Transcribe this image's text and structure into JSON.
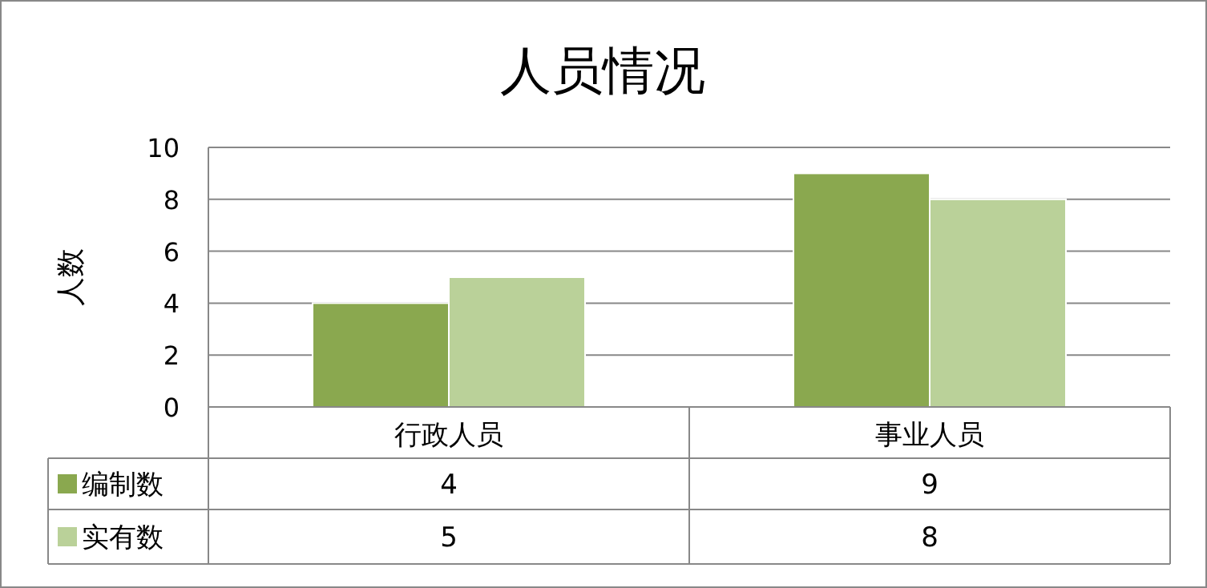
{
  "chart_data": {
    "type": "bar",
    "title": "人员情况",
    "ylabel": "人数",
    "categories": [
      "行政人员",
      "事业人员"
    ],
    "series": [
      {
        "name": "编制数",
        "color": "#8aa84f",
        "values": [
          4,
          9
        ]
      },
      {
        "name": "实有数",
        "color": "#bad199",
        "values": [
          5,
          8
        ]
      }
    ],
    "ylim": [
      0,
      10
    ],
    "yticks": [
      0,
      2,
      4,
      6,
      8,
      10
    ],
    "grid": "y",
    "data_labels": true,
    "legend": "bottom left"
  }
}
